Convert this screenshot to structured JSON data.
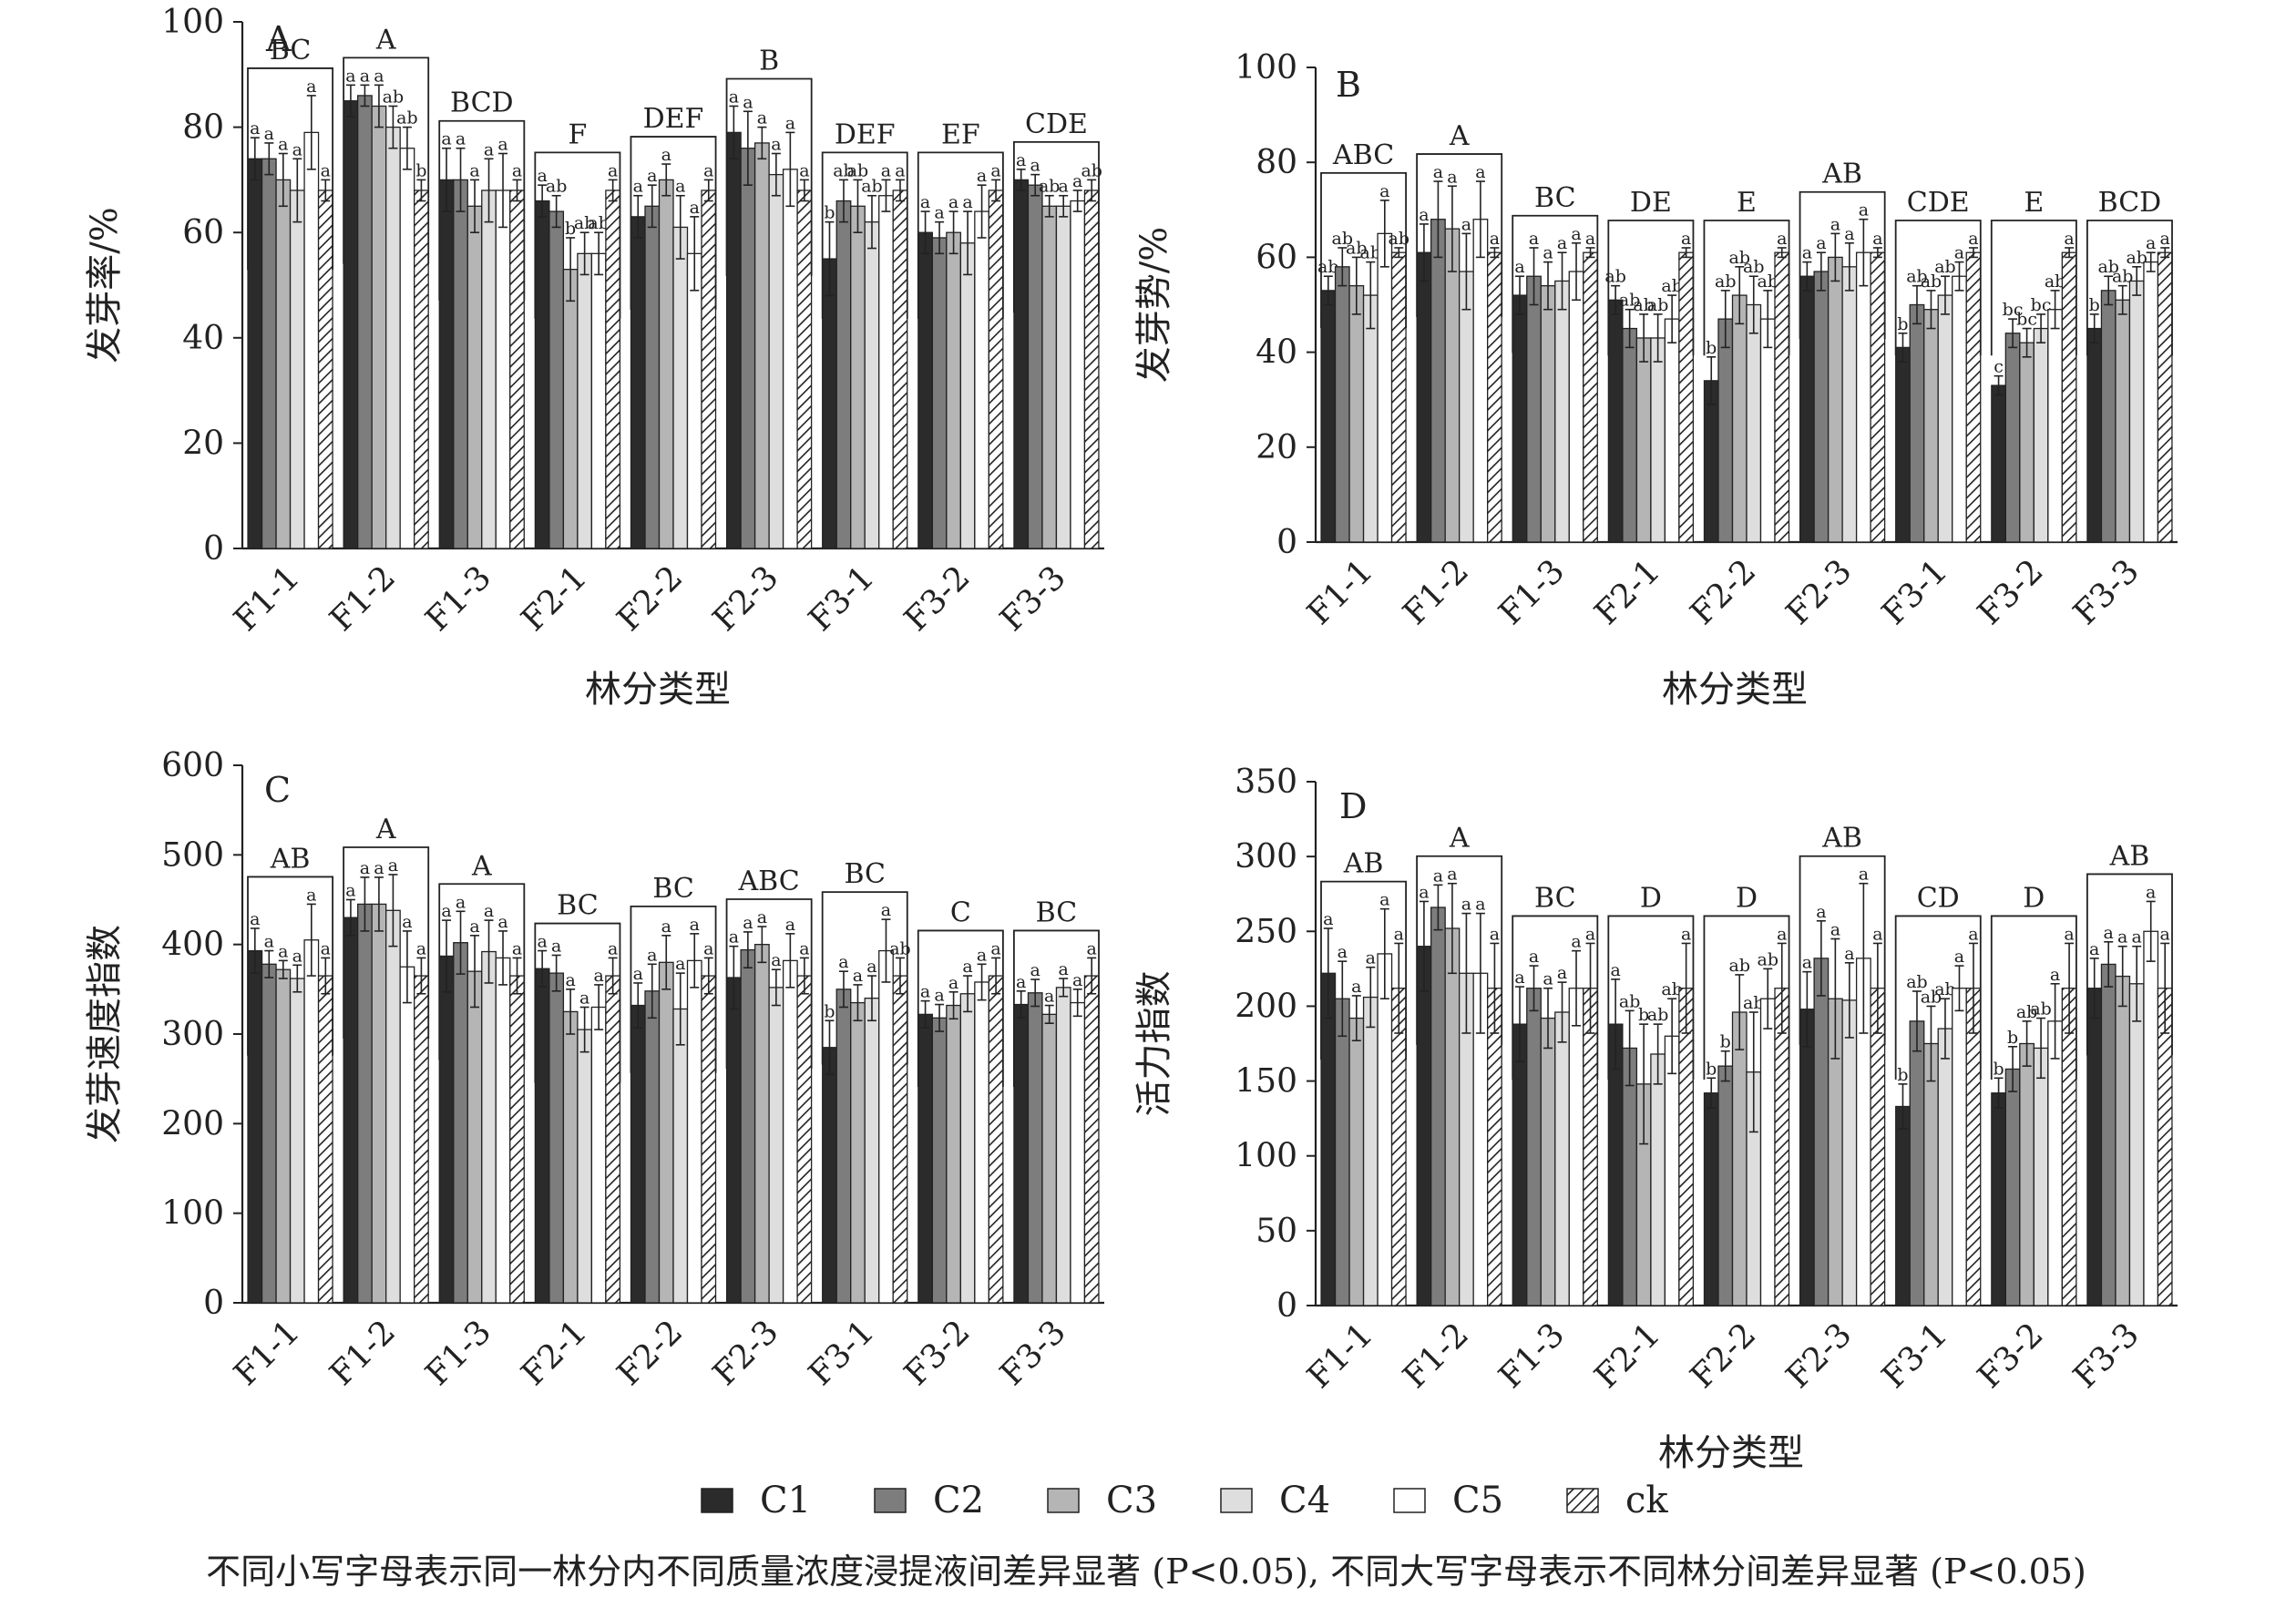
{
  "colors": {
    "C1": "#2b2b2b",
    "C2": "#7d7d7d",
    "C3": "#b5b5b5",
    "C4": "#dedede",
    "C5": "#ffffff",
    "ck": "hatched",
    "axis": "#222222"
  },
  "legend": {
    "items": [
      {
        "key": "C1",
        "label": "C1"
      },
      {
        "key": "C2",
        "label": "C2"
      },
      {
        "key": "C3",
        "label": "C3"
      },
      {
        "key": "C4",
        "label": "C4"
      },
      {
        "key": "C5",
        "label": "C5"
      },
      {
        "key": "ck",
        "label": "ck"
      }
    ],
    "placement": "bottom-center"
  },
  "footnote": "不同小写字母表示同一林分内不同质量浓度浸提液间差异显著 (P<0.05), 不同大写字母表示不同林分间差异显著 (P<0.05)",
  "chart_data": [
    {
      "panel": "A",
      "type": "bar",
      "ylabel": "发芽率/%",
      "xlabel": "林分类型",
      "ylim": [
        0,
        100
      ],
      "yticks": [
        0,
        20,
        40,
        60,
        80,
        100
      ],
      "categories": [
        "F1-1",
        "F1-2",
        "F1-3",
        "F2-1",
        "F2-2",
        "F2-3",
        "F3-1",
        "F3-2",
        "F3-3"
      ],
      "group_letters": [
        "BC",
        "A",
        "BCD",
        "F",
        "DEF",
        "B",
        "DEF",
        "EF",
        "CDE"
      ],
      "series": [
        {
          "name": "C1",
          "values": [
            74,
            85,
            70,
            66,
            63,
            79,
            55,
            60,
            70
          ],
          "errors": [
            4,
            3,
            6,
            3,
            4,
            5,
            7,
            4,
            2
          ],
          "letters": [
            "a",
            "a",
            "a",
            "a",
            "a",
            "a",
            "b",
            "a",
            "a"
          ]
        },
        {
          "name": "C2",
          "values": [
            74,
            86,
            70,
            64,
            65,
            76,
            66,
            59,
            69
          ],
          "errors": [
            3,
            2,
            6,
            3,
            4,
            7,
            4,
            3,
            2
          ],
          "letters": [
            "a",
            "a",
            "a",
            "ab",
            "a",
            "a",
            "ab",
            "a",
            "a"
          ]
        },
        {
          "name": "C3",
          "values": [
            70,
            84,
            65,
            53,
            70,
            77,
            65,
            60,
            65
          ],
          "errors": [
            5,
            4,
            5,
            6,
            3,
            3,
            5,
            4,
            2
          ],
          "letters": [
            "a",
            "a",
            "a",
            "b",
            "a",
            "a",
            "ab",
            "a",
            "ab"
          ]
        },
        {
          "name": "C4",
          "values": [
            68,
            80,
            68,
            56,
            61,
            71,
            62,
            58,
            65
          ],
          "errors": [
            6,
            4,
            6,
            4,
            6,
            4,
            5,
            6,
            2
          ],
          "letters": [
            "a",
            "ab",
            "a",
            "ab",
            "a",
            "a",
            "ab",
            "a",
            "a"
          ]
        },
        {
          "name": "C5",
          "values": [
            79,
            76,
            68,
            56,
            56,
            72,
            67,
            64,
            66
          ],
          "errors": [
            7,
            4,
            7,
            4,
            7,
            7,
            3,
            5,
            2
          ],
          "letters": [
            "a",
            "ab",
            "a",
            "ab",
            "a",
            "a",
            "a",
            "a",
            "a"
          ]
        },
        {
          "name": "ck",
          "values": [
            68,
            68,
            68,
            68,
            68,
            68,
            68,
            68,
            68
          ],
          "errors": [
            2,
            2,
            2,
            2,
            2,
            2,
            2,
            2,
            2
          ],
          "letters": [
            "a",
            "b",
            "a",
            "a",
            "a",
            "a",
            "a",
            "a",
            "ab"
          ]
        }
      ]
    },
    {
      "panel": "B",
      "type": "bar",
      "ylabel": "发芽势/%",
      "xlabel": "林分类型",
      "ylim": [
        0,
        100
      ],
      "yticks": [
        0,
        20,
        40,
        60,
        80,
        100
      ],
      "categories": [
        "F1-1",
        "F1-2",
        "F1-3",
        "F2-1",
        "F2-2",
        "F2-3",
        "F3-1",
        "F3-2",
        "F3-3"
      ],
      "group_letters": [
        "ABC",
        "A",
        "BC",
        "DE",
        "E",
        "AB",
        "CDE",
        "E",
        "BCD"
      ],
      "series": [
        {
          "name": "C1",
          "values": [
            53,
            61,
            52,
            51,
            34,
            56,
            41,
            33,
            45
          ],
          "errors": [
            3,
            6,
            4,
            3,
            5,
            3,
            3,
            2,
            3
          ],
          "letters": [
            "ab",
            "a",
            "a",
            "ab",
            "b",
            "a",
            "b",
            "c",
            "b"
          ]
        },
        {
          "name": "C2",
          "values": [
            58,
            68,
            56,
            45,
            47,
            57,
            50,
            44,
            53
          ],
          "errors": [
            4,
            8,
            6,
            4,
            6,
            4,
            4,
            3,
            3
          ],
          "letters": [
            "ab",
            "a",
            "a",
            "ab",
            "ab",
            "a",
            "ab",
            "bc",
            "ab"
          ]
        },
        {
          "name": "C3",
          "values": [
            54,
            66,
            54,
            43,
            52,
            60,
            49,
            42,
            51
          ],
          "errors": [
            6,
            9,
            5,
            5,
            6,
            5,
            4,
            3,
            3
          ],
          "letters": [
            "ab",
            "a",
            "a",
            "ab",
            "ab",
            "a",
            "ab",
            "bc",
            "ab"
          ]
        },
        {
          "name": "C4",
          "values": [
            52,
            57,
            55,
            43,
            50,
            58,
            52,
            45,
            55
          ],
          "errors": [
            7,
            8,
            6,
            5,
            6,
            5,
            4,
            3,
            3
          ],
          "letters": [
            "ab",
            "a",
            "a",
            "ab",
            "ab",
            "a",
            "ab",
            "bc",
            "ab"
          ]
        },
        {
          "name": "C5",
          "values": [
            65,
            68,
            57,
            47,
            47,
            61,
            56,
            49,
            59
          ],
          "errors": [
            7,
            8,
            6,
            5,
            6,
            7,
            3,
            4,
            2
          ],
          "letters": [
            "a",
            "a",
            "a",
            "ab",
            "ab",
            "a",
            "a",
            "ab",
            "a"
          ]
        },
        {
          "name": "ck",
          "values": [
            61,
            61,
            61,
            61,
            61,
            61,
            61,
            61,
            61
          ],
          "errors": [
            1,
            1,
            1,
            1,
            1,
            1,
            1,
            1,
            1
          ],
          "letters": [
            "ab",
            "a",
            "a",
            "a",
            "a",
            "a",
            "a",
            "a",
            "a"
          ]
        }
      ]
    },
    {
      "panel": "C",
      "type": "bar",
      "ylabel": "发芽速度指数",
      "xlabel": "",
      "ylim": [
        0,
        600
      ],
      "yticks": [
        0,
        100,
        200,
        300,
        400,
        500,
        600
      ],
      "categories": [
        "F1-1",
        "F1-2",
        "F1-3",
        "F2-1",
        "F2-2",
        "F2-3",
        "F3-1",
        "F3-2",
        "F3-3"
      ],
      "group_letters": [
        "AB",
        "A",
        "A",
        "BC",
        "BC",
        "ABC",
        "BC",
        "C",
        "BC"
      ],
      "series": [
        {
          "name": "C1",
          "values": [
            393,
            430,
            387,
            373,
            332,
            363,
            285,
            322,
            333
          ],
          "errors": [
            25,
            20,
            40,
            20,
            25,
            35,
            30,
            15,
            15
          ],
          "letters": [
            "a",
            "a",
            "a",
            "a",
            "a",
            "a",
            "b",
            "a",
            "a"
          ]
        },
        {
          "name": "C2",
          "values": [
            378,
            445,
            402,
            368,
            348,
            394,
            350,
            318,
            346
          ],
          "errors": [
            15,
            30,
            35,
            20,
            30,
            20,
            20,
            15,
            15
          ],
          "letters": [
            "a",
            "a",
            "a",
            "a",
            "a",
            "a",
            "a",
            "a",
            "a"
          ]
        },
        {
          "name": "C3",
          "values": [
            372,
            445,
            370,
            325,
            380,
            400,
            335,
            332,
            322
          ],
          "errors": [
            10,
            30,
            40,
            25,
            30,
            20,
            20,
            15,
            10
          ],
          "letters": [
            "a",
            "a",
            "a",
            "a",
            "a",
            "a",
            "a",
            "a",
            "a"
          ]
        },
        {
          "name": "C4",
          "values": [
            362,
            438,
            392,
            305,
            328,
            352,
            340,
            345,
            352
          ],
          "errors": [
            15,
            40,
            35,
            25,
            40,
            20,
            25,
            20,
            10
          ],
          "letters": [
            "a",
            "a",
            "a",
            "a",
            "a",
            "a",
            "a",
            "a",
            "a"
          ]
        },
        {
          "name": "C5",
          "values": [
            405,
            375,
            385,
            330,
            382,
            382,
            393,
            358,
            335
          ],
          "errors": [
            40,
            40,
            30,
            25,
            30,
            30,
            35,
            20,
            15
          ],
          "letters": [
            "a",
            "a",
            "a",
            "a",
            "a",
            "a",
            "a",
            "a",
            "a"
          ]
        },
        {
          "name": "ck",
          "values": [
            365,
            365,
            365,
            365,
            365,
            365,
            365,
            365,
            365
          ],
          "errors": [
            20,
            20,
            20,
            20,
            20,
            20,
            20,
            20,
            20
          ],
          "letters": [
            "a",
            "a",
            "a",
            "a",
            "a",
            "a",
            "ab",
            "a",
            "a"
          ]
        }
      ]
    },
    {
      "panel": "D",
      "type": "bar",
      "ylabel": "活力指数",
      "xlabel": "林分类型",
      "ylim": [
        0,
        350
      ],
      "yticks": [
        0,
        50,
        100,
        150,
        200,
        250,
        300,
        350
      ],
      "categories": [
        "F1-1",
        "F1-2",
        "F1-3",
        "F2-1",
        "F2-2",
        "F2-3",
        "F3-1",
        "F3-2",
        "F3-3"
      ],
      "group_letters": [
        "AB",
        "A",
        "BC",
        "D",
        "D",
        "AB",
        "CD",
        "D",
        "AB"
      ],
      "series": [
        {
          "name": "C1",
          "values": [
            222,
            240,
            188,
            188,
            142,
            198,
            133,
            142,
            212
          ],
          "errors": [
            30,
            30,
            25,
            30,
            10,
            25,
            15,
            10,
            20
          ],
          "letters": [
            "a",
            "a",
            "a",
            "a",
            "b",
            "a",
            "b",
            "b",
            "a"
          ]
        },
        {
          "name": "C2",
          "values": [
            205,
            266,
            212,
            172,
            160,
            232,
            190,
            158,
            228
          ],
          "errors": [
            25,
            15,
            15,
            25,
            10,
            25,
            20,
            15,
            15
          ],
          "letters": [
            "a",
            "a",
            "a",
            "ab",
            "b",
            "a",
            "ab",
            "b",
            "a"
          ]
        },
        {
          "name": "C3",
          "values": [
            192,
            252,
            192,
            148,
            196,
            205,
            175,
            175,
            220
          ],
          "errors": [
            15,
            30,
            20,
            40,
            25,
            40,
            25,
            15,
            20
          ],
          "letters": [
            "a",
            "a",
            "a",
            "b",
            "ab",
            "a",
            "ab",
            "ab",
            "a"
          ]
        },
        {
          "name": "C4",
          "values": [
            206,
            222,
            196,
            168,
            156,
            204,
            185,
            172,
            215
          ],
          "errors": [
            20,
            40,
            20,
            20,
            40,
            25,
            20,
            20,
            25
          ],
          "letters": [
            "a",
            "a",
            "a",
            "ab",
            "ab",
            "a",
            "ab",
            "ab",
            "a"
          ]
        },
        {
          "name": "C5",
          "values": [
            235,
            222,
            212,
            180,
            205,
            232,
            212,
            190,
            250
          ],
          "errors": [
            30,
            40,
            25,
            25,
            20,
            50,
            15,
            25,
            20
          ],
          "letters": [
            "a",
            "a",
            "a",
            "ab",
            "ab",
            "a",
            "a",
            "a",
            "a"
          ]
        },
        {
          "name": "ck",
          "values": [
            212,
            212,
            212,
            212,
            212,
            212,
            212,
            212,
            212
          ],
          "errors": [
            30,
            30,
            30,
            30,
            30,
            30,
            30,
            30,
            30
          ],
          "letters": [
            "a",
            "a",
            "a",
            "a",
            "a",
            "a",
            "a",
            "a",
            "a"
          ]
        }
      ]
    }
  ]
}
